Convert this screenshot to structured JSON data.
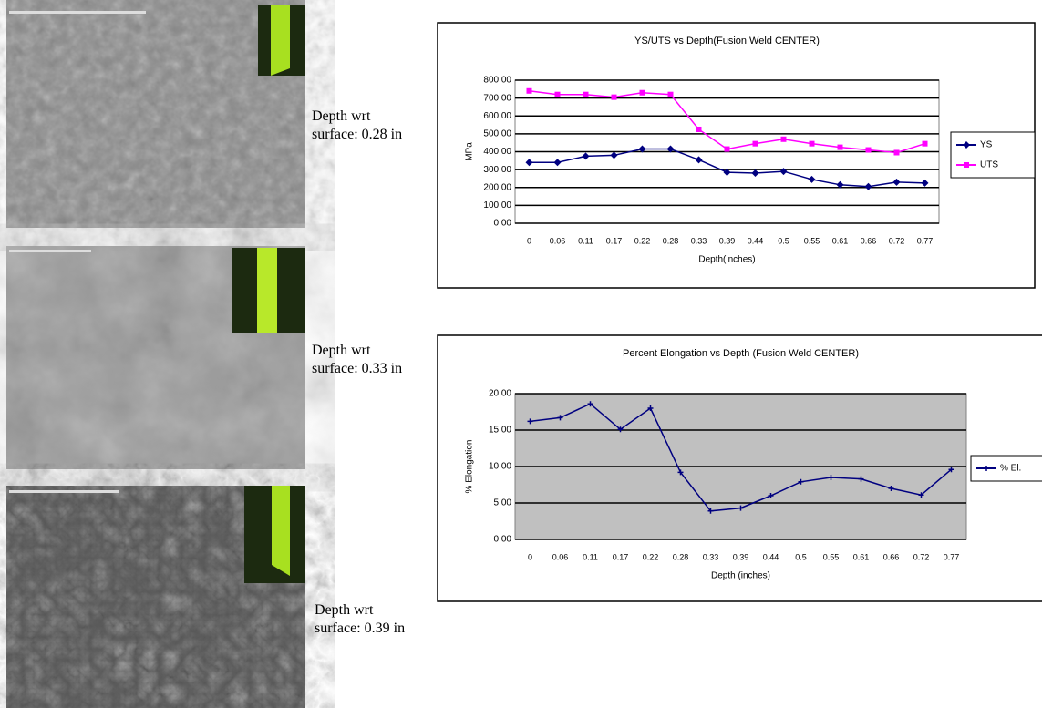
{
  "micrographs": [
    {
      "caption": [
        "Depth wrt",
        "surface: 0.28 in"
      ]
    },
    {
      "caption": [
        "Depth wrt",
        "surface: 0.33 in"
      ]
    },
    {
      "caption": [
        "Depth wrt",
        "surface: 0.39 in"
      ]
    }
  ],
  "chart_data": [
    {
      "type": "line",
      "title": "YS/UTS vs Depth(Fusion Weld CENTER)",
      "x_label": "Depth(inches)",
      "y_label": "MPa",
      "categories": [
        "0",
        "0.06",
        "0.11",
        "0.17",
        "0.22",
        "0.28",
        "0.33",
        "0.39",
        "0.44",
        "0.5",
        "0.55",
        "0.61",
        "0.66",
        "0.72",
        "0.77"
      ],
      "series": [
        {
          "name": "YS",
          "color": "#000080",
          "marker": "diamond",
          "values": [
            340,
            340,
            375,
            380,
            415,
            415,
            355,
            285,
            280,
            290,
            245,
            215,
            205,
            230,
            225
          ]
        },
        {
          "name": "UTS",
          "color": "#ff00ff",
          "marker": "square",
          "values": [
            740,
            720,
            720,
            705,
            730,
            720,
            525,
            415,
            445,
            470,
            445,
            425,
            410,
            395,
            445
          ]
        }
      ],
      "ylim": [
        0,
        800
      ],
      "yticks": [
        {
          "value": 0,
          "label": "0.00"
        },
        {
          "value": 100,
          "label": "100.00"
        },
        {
          "value": 200,
          "label": "200.00"
        },
        {
          "value": 300,
          "label": "300.00"
        },
        {
          "value": 400,
          "label": "400.00"
        },
        {
          "value": 500,
          "label": "500.00"
        },
        {
          "value": 600,
          "label": "600.00"
        },
        {
          "value": 700,
          "label": "700.00"
        },
        {
          "value": 800,
          "label": "800.00"
        }
      ],
      "grid": true,
      "plot_background": "#ffffff",
      "legend": "right"
    },
    {
      "type": "line",
      "title": "Percent Elongation vs Depth (Fusion Weld CENTER)",
      "x_label": "Depth (inches)",
      "y_label": "% Elongation",
      "categories": [
        "0",
        "0.06",
        "0.11",
        "0.17",
        "0.22",
        "0.28",
        "0.33",
        "0.39",
        "0.44",
        "0.5",
        "0.55",
        "0.61",
        "0.66",
        "0.72",
        "0.77"
      ],
      "series": [
        {
          "name": "% El.",
          "color": "#000080",
          "marker": "plus",
          "values": [
            16.2,
            16.7,
            18.6,
            15.1,
            18.0,
            9.2,
            3.9,
            4.3,
            6.0,
            7.9,
            8.5,
            8.3,
            7.0,
            6.1,
            9.6
          ]
        }
      ],
      "ylim": [
        0,
        20
      ],
      "yticks": [
        {
          "value": 0,
          "label": "0.00"
        },
        {
          "value": 5,
          "label": "5.00"
        },
        {
          "value": 10,
          "label": "10.00"
        },
        {
          "value": 15,
          "label": "15.00"
        },
        {
          "value": 20,
          "label": "20.00"
        }
      ],
      "grid": true,
      "plot_background": "#c0c0c0",
      "legend": "right"
    }
  ]
}
